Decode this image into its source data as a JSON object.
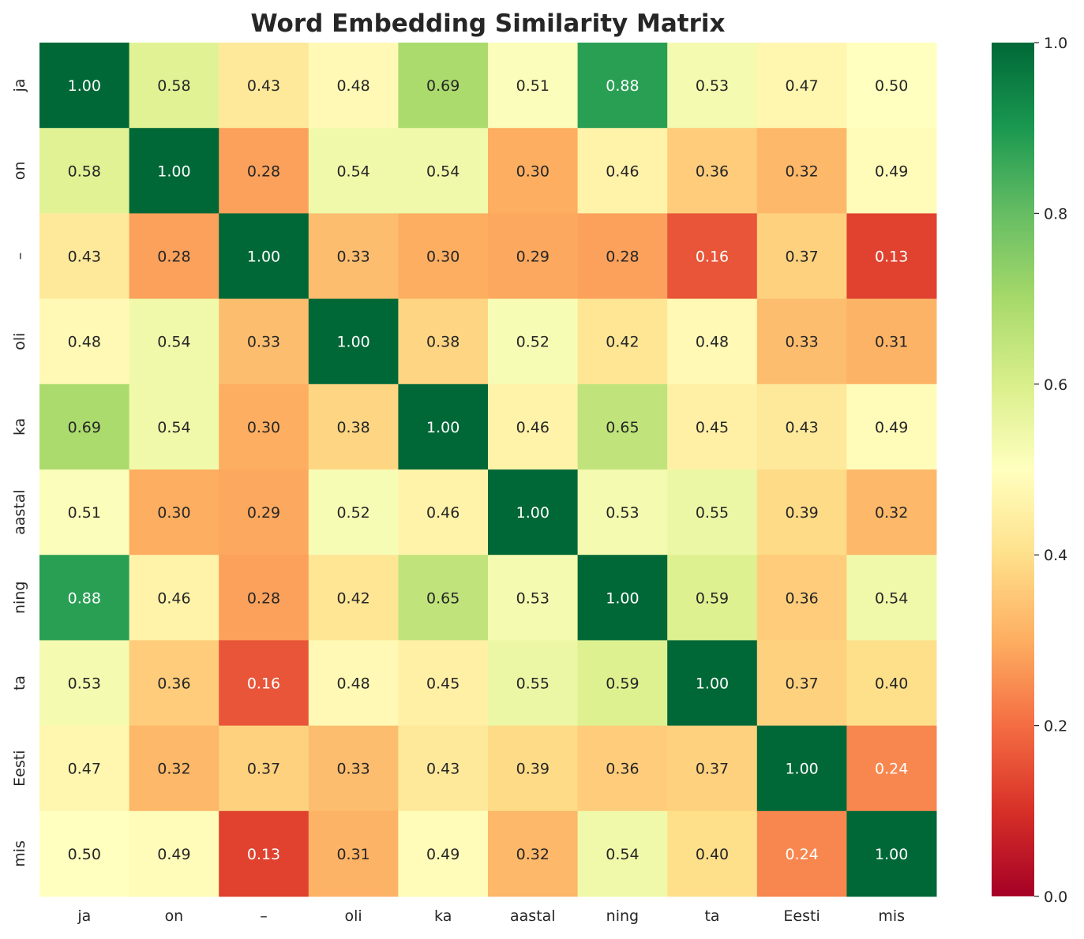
{
  "chart_data": {
    "type": "heatmap",
    "title": "Word Embedding Similarity Matrix",
    "colormap": "RdYlGn",
    "colorbar": {
      "range": [
        0.0,
        1.0
      ],
      "ticks": [
        "0.0",
        "0.2",
        "0.4",
        "0.6",
        "0.8",
        "1.0"
      ]
    },
    "x_labels": [
      "ja",
      "on",
      "–",
      "oli",
      "ka",
      "aastal",
      "ning",
      "ta",
      "Eesti",
      "mis"
    ],
    "y_labels": [
      "ja",
      "on",
      "–",
      "oli",
      "ka",
      "aastal",
      "ning",
      "ta",
      "Eesti",
      "mis"
    ],
    "values": [
      [
        1.0,
        0.58,
        0.43,
        0.48,
        0.69,
        0.51,
        0.88,
        0.53,
        0.47,
        0.5
      ],
      [
        0.58,
        1.0,
        0.28,
        0.54,
        0.54,
        0.3,
        0.46,
        0.36,
        0.32,
        0.49
      ],
      [
        0.43,
        0.28,
        1.0,
        0.33,
        0.3,
        0.29,
        0.28,
        0.16,
        0.37,
        0.13
      ],
      [
        0.48,
        0.54,
        0.33,
        1.0,
        0.38,
        0.52,
        0.42,
        0.48,
        0.33,
        0.31
      ],
      [
        0.69,
        0.54,
        0.3,
        0.38,
        1.0,
        0.46,
        0.65,
        0.45,
        0.43,
        0.49
      ],
      [
        0.51,
        0.3,
        0.29,
        0.52,
        0.46,
        1.0,
        0.53,
        0.55,
        0.39,
        0.32
      ],
      [
        0.88,
        0.46,
        0.28,
        0.42,
        0.65,
        0.53,
        1.0,
        0.59,
        0.36,
        0.54
      ],
      [
        0.53,
        0.36,
        0.16,
        0.48,
        0.45,
        0.55,
        0.59,
        1.0,
        0.37,
        0.4
      ],
      [
        0.47,
        0.32,
        0.37,
        0.33,
        0.43,
        0.39,
        0.36,
        0.37,
        1.0,
        0.24
      ],
      [
        0.5,
        0.49,
        0.13,
        0.31,
        0.49,
        0.32,
        0.54,
        0.4,
        0.24,
        1.0
      ]
    ],
    "annotation_format": "0.00"
  }
}
